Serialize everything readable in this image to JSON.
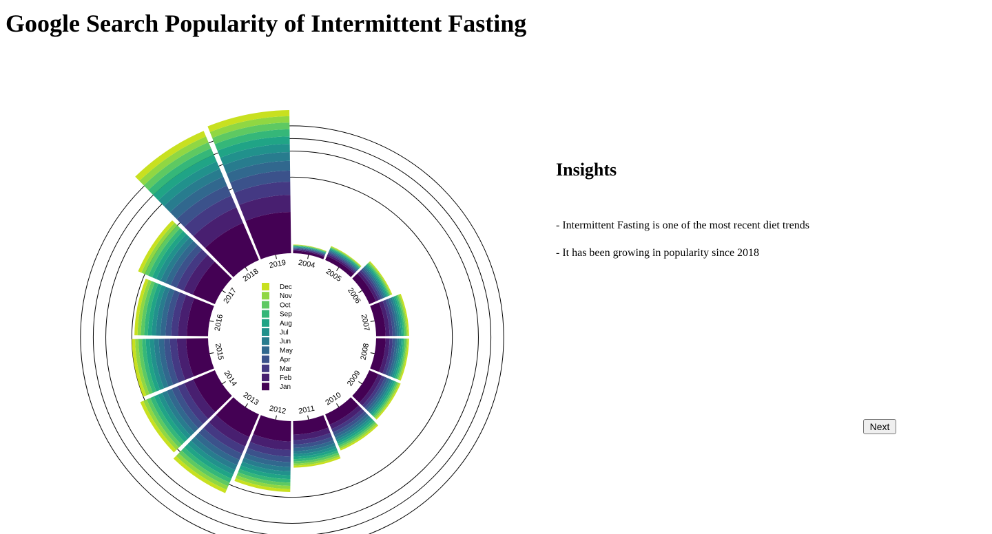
{
  "page": {
    "title": "Google Search Popularity of Intermittent Fasting",
    "insights_heading": "Insights",
    "insights": [
      "- Intermittent Fasting is one of the most recent diet trends",
      "- It has been growing in popularity since 2018"
    ],
    "next_label": "Next"
  },
  "chart_data": {
    "type": "radial stacked bar",
    "title": "",
    "years": [
      "2004",
      "2005",
      "2006",
      "2007",
      "2008",
      "2009",
      "2010",
      "2011",
      "2012",
      "2013",
      "2014",
      "2015",
      "2016",
      "2017",
      "2018",
      "2019"
    ],
    "months": [
      "Jan",
      "Feb",
      "Mar",
      "Apr",
      "May",
      "Jun",
      "Jul",
      "Aug",
      "Sep",
      "Oct",
      "Nov",
      "Dec"
    ],
    "legend_order": [
      "Dec",
      "Nov",
      "Oct",
      "Sep",
      "Aug",
      "Jul",
      "Jun",
      "May",
      "Apr",
      "Mar",
      "Feb",
      "Jan"
    ],
    "colors": {
      "Jan": "#440154",
      "Feb": "#481f70",
      "Mar": "#443983",
      "Apr": "#3b528b",
      "May": "#31688e",
      "Jun": "#287c8e",
      "Jul": "#21918c",
      "Aug": "#20a486",
      "Sep": "#35b779",
      "Oct": "#5ec962",
      "Nov": "#90d743",
      "Dec": "#c8e020"
    },
    "year_totals": [
      1,
      3,
      8,
      14,
      14,
      15,
      20,
      28,
      65,
      95,
      85,
      75,
      70,
      90,
      255,
      265
    ],
    "value_axis": {
      "min": 0,
      "max": 265,
      "grid_values": [
        75,
        135,
        170,
        210
      ],
      "scale": "sqrt"
    },
    "grid": true,
    "legend_position": "center"
  }
}
